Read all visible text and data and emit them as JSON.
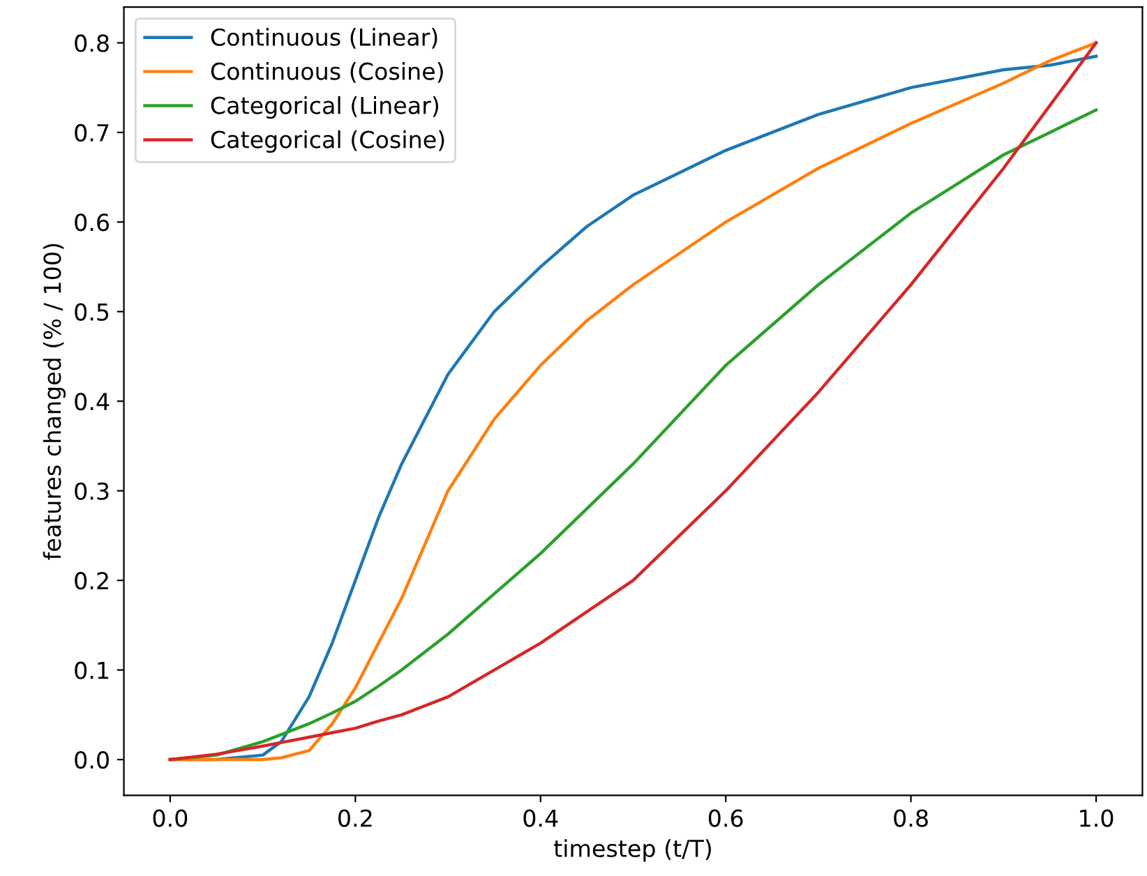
{
  "chart_data": {
    "type": "line",
    "xlabel": "timestep (t/T)",
    "ylabel": "features changed (% / 100)",
    "xlim": [
      -0.05,
      1.05
    ],
    "ylim": [
      -0.04,
      0.84
    ],
    "xticks": [
      {
        "value": 0,
        "label": "0.0"
      },
      0.2,
      0.4,
      0.6,
      0.8,
      {
        "value": 1,
        "label": "1.0"
      }
    ],
    "yticks": [
      {
        "value": 0,
        "label": "0.0"
      },
      0.1,
      0.2,
      0.3,
      0.4,
      0.5,
      0.6,
      0.7,
      0.8
    ],
    "grid": false,
    "legend": "top left",
    "marker": "none",
    "line_style": "solid",
    "x": [
      0,
      0.05,
      0.1,
      0.12,
      0.15,
      0.175,
      0.2,
      0.225,
      0.25,
      0.3,
      0.35,
      0.4,
      0.45,
      0.5,
      0.6,
      0.7,
      0.8,
      0.9,
      0.95,
      1.0
    ],
    "series": [
      {
        "name": "Continuous (Linear)",
        "color": "#1f77b4",
        "values": [
          0,
          0,
          0.005,
          0.02,
          0.07,
          0.13,
          0.2,
          0.27,
          0.33,
          0.43,
          0.5,
          0.55,
          0.595,
          0.63,
          0.68,
          0.72,
          0.75,
          0.77,
          0.775,
          0.785
        ]
      },
      {
        "name": "Continuous (Cosine)",
        "color": "#ff7f0e",
        "values": [
          0,
          0,
          0,
          0.002,
          0.01,
          0.04,
          0.08,
          0.13,
          0.18,
          0.3,
          0.38,
          0.44,
          0.49,
          0.53,
          0.6,
          0.66,
          0.71,
          0.755,
          0.78,
          0.8
        ]
      },
      {
        "name": "Categorical (Linear)",
        "color": "#2ca02c",
        "values": [
          0,
          0.005,
          0.02,
          0.028,
          0.04,
          0.052,
          0.065,
          0.082,
          0.1,
          0.14,
          0.185,
          0.23,
          0.28,
          0.33,
          0.44,
          0.53,
          0.61,
          0.675,
          0.7,
          0.725
        ]
      },
      {
        "name": "Categorical (Cosine)",
        "color": "#d62728",
        "values": [
          0,
          0.006,
          0.015,
          0.019,
          0.025,
          0.03,
          0.035,
          0.043,
          0.05,
          0.07,
          0.1,
          0.13,
          0.165,
          0.2,
          0.3,
          0.41,
          0.53,
          0.66,
          0.73,
          0.8
        ]
      }
    ]
  }
}
